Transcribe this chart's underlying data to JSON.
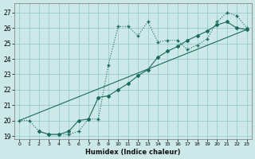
{
  "xlabel": "Humidex (Indice chaleur)",
  "bg_color": "#cce8e8",
  "grid_color": "#99cccc",
  "line_color": "#1a6b5a",
  "xlim": [
    -0.5,
    23.5
  ],
  "ylim": [
    18.8,
    27.6
  ],
  "xticks": [
    0,
    1,
    2,
    3,
    4,
    5,
    6,
    7,
    8,
    9,
    10,
    11,
    12,
    13,
    14,
    15,
    16,
    17,
    18,
    19,
    20,
    21,
    22,
    23
  ],
  "yticks": [
    19,
    20,
    21,
    22,
    23,
    24,
    25,
    26,
    27
  ],
  "series_dot_x": [
    0,
    1,
    2,
    3,
    4,
    5,
    6,
    7,
    8,
    9,
    10,
    11,
    12,
    13,
    14,
    15,
    16,
    17,
    18,
    19,
    20,
    21,
    22,
    23
  ],
  "series_dot_y": [
    20.0,
    20.0,
    19.3,
    19.1,
    19.1,
    19.1,
    19.3,
    20.1,
    20.1,
    23.6,
    26.1,
    26.1,
    25.5,
    26.4,
    25.1,
    25.2,
    25.2,
    24.6,
    24.9,
    25.3,
    26.4,
    27.0,
    26.8,
    26.0
  ],
  "series_solid_x": [
    2,
    3,
    4,
    5,
    6,
    7,
    8,
    9,
    10,
    11,
    12,
    13,
    14,
    15,
    16,
    17,
    18,
    19,
    20,
    21,
    22,
    23
  ],
  "series_solid_y": [
    19.3,
    19.1,
    19.1,
    19.3,
    20.0,
    20.1,
    21.5,
    21.6,
    22.0,
    22.4,
    22.9,
    23.3,
    24.1,
    24.5,
    24.8,
    25.2,
    25.5,
    25.8,
    26.2,
    26.4,
    26.0,
    25.9
  ],
  "series_line_x": [
    0,
    23
  ],
  "series_line_y": [
    20.0,
    25.9
  ]
}
